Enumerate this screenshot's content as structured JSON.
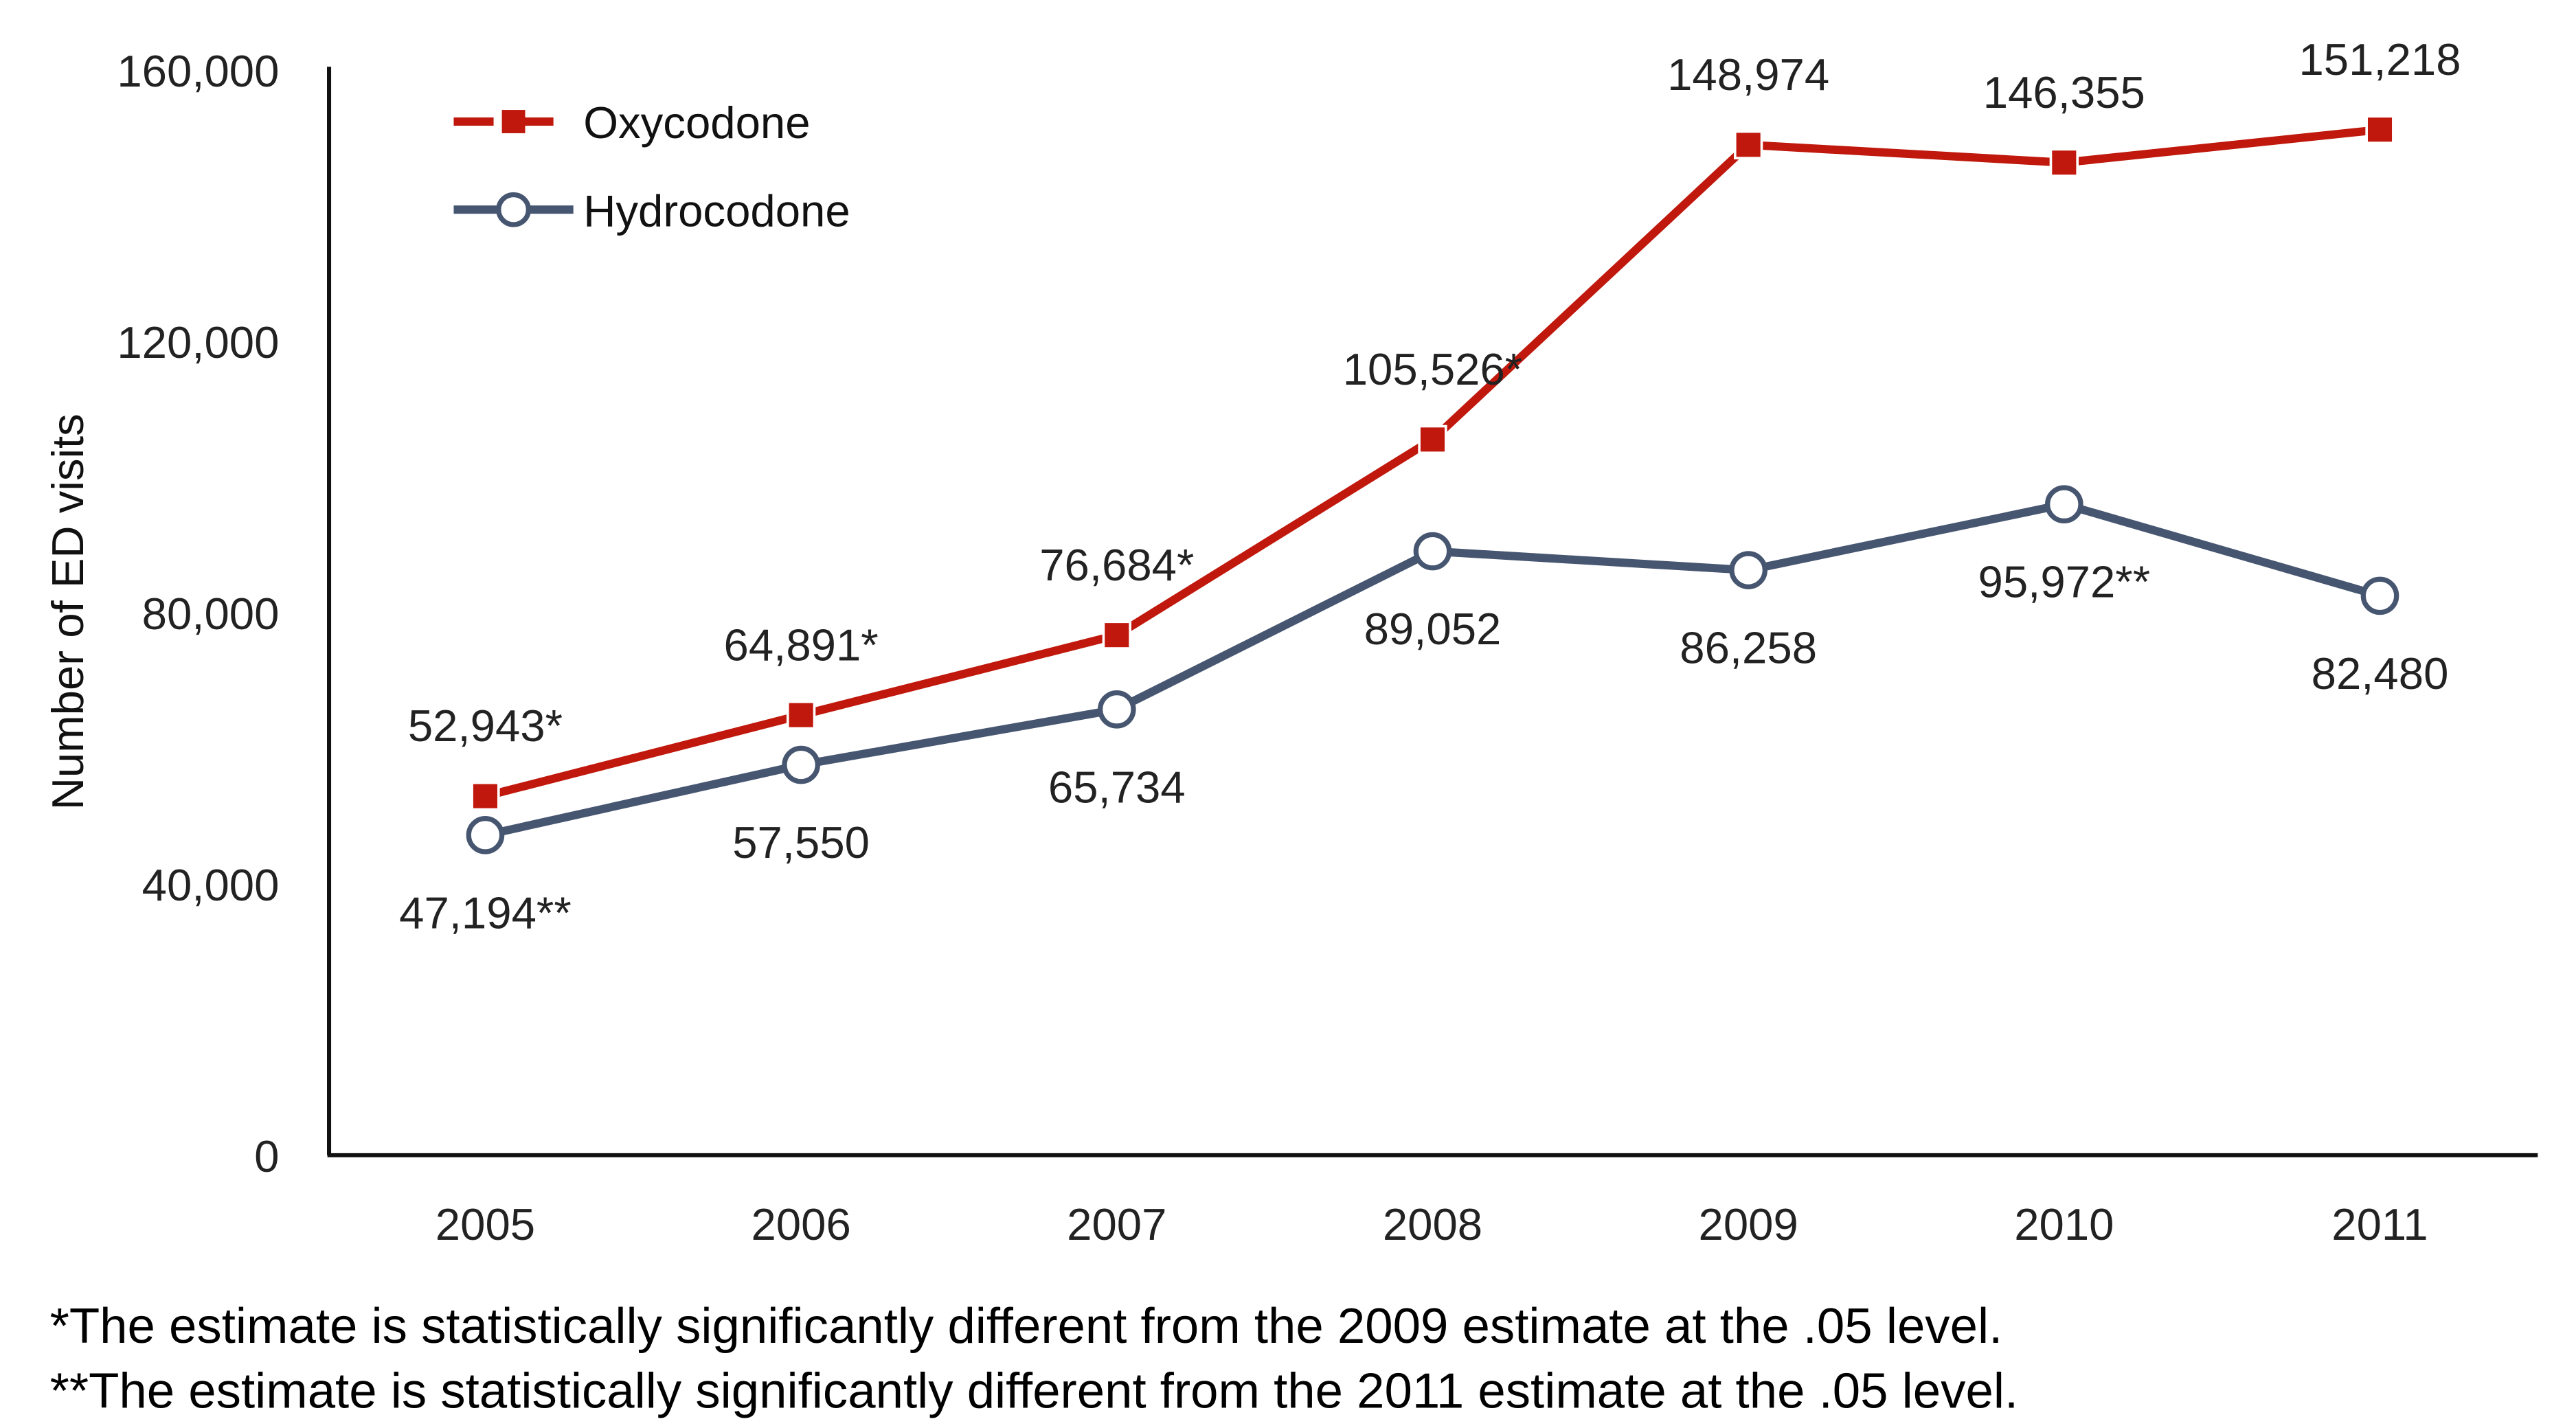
{
  "chart_data": {
    "type": "line",
    "title": "",
    "xlabel": "",
    "ylabel": "Number of ED visits",
    "ylim": [
      0,
      160000
    ],
    "yticks": [
      "0",
      "40,000",
      "80,000",
      "120,000",
      "160,000"
    ],
    "ytick_values": [
      0,
      40000,
      80000,
      120000,
      160000
    ],
    "categories": [
      "2005",
      "2006",
      "2007",
      "2008",
      "2009",
      "2010",
      "2011"
    ],
    "grid": false,
    "legend_position": "top-left",
    "series": [
      {
        "name": "Oxycodone",
        "color": "#C0180C",
        "marker": "square",
        "values": [
          52943,
          64891,
          76684,
          105526,
          148974,
          146355,
          151218
        ],
        "labels": [
          "52,943*",
          "64,891*",
          "76,684*",
          "105,526*",
          "148,974",
          "146,355",
          "151,218"
        ]
      },
      {
        "name": "Hydrocodone",
        "color": "#475670",
        "marker": "open-circle",
        "values": [
          47194,
          57550,
          65734,
          89052,
          86258,
          95972,
          82480
        ],
        "labels": [
          "47,194**",
          "57,550",
          "65,734",
          "89,052",
          "86,258",
          "95,972**",
          "82,480"
        ]
      }
    ],
    "footnotes": [
      "*The estimate is statistically significantly different from the 2009 estimate at the .05 level.",
      "**The estimate is statistically significantly different from the 2011 estimate at the .05 level."
    ]
  }
}
